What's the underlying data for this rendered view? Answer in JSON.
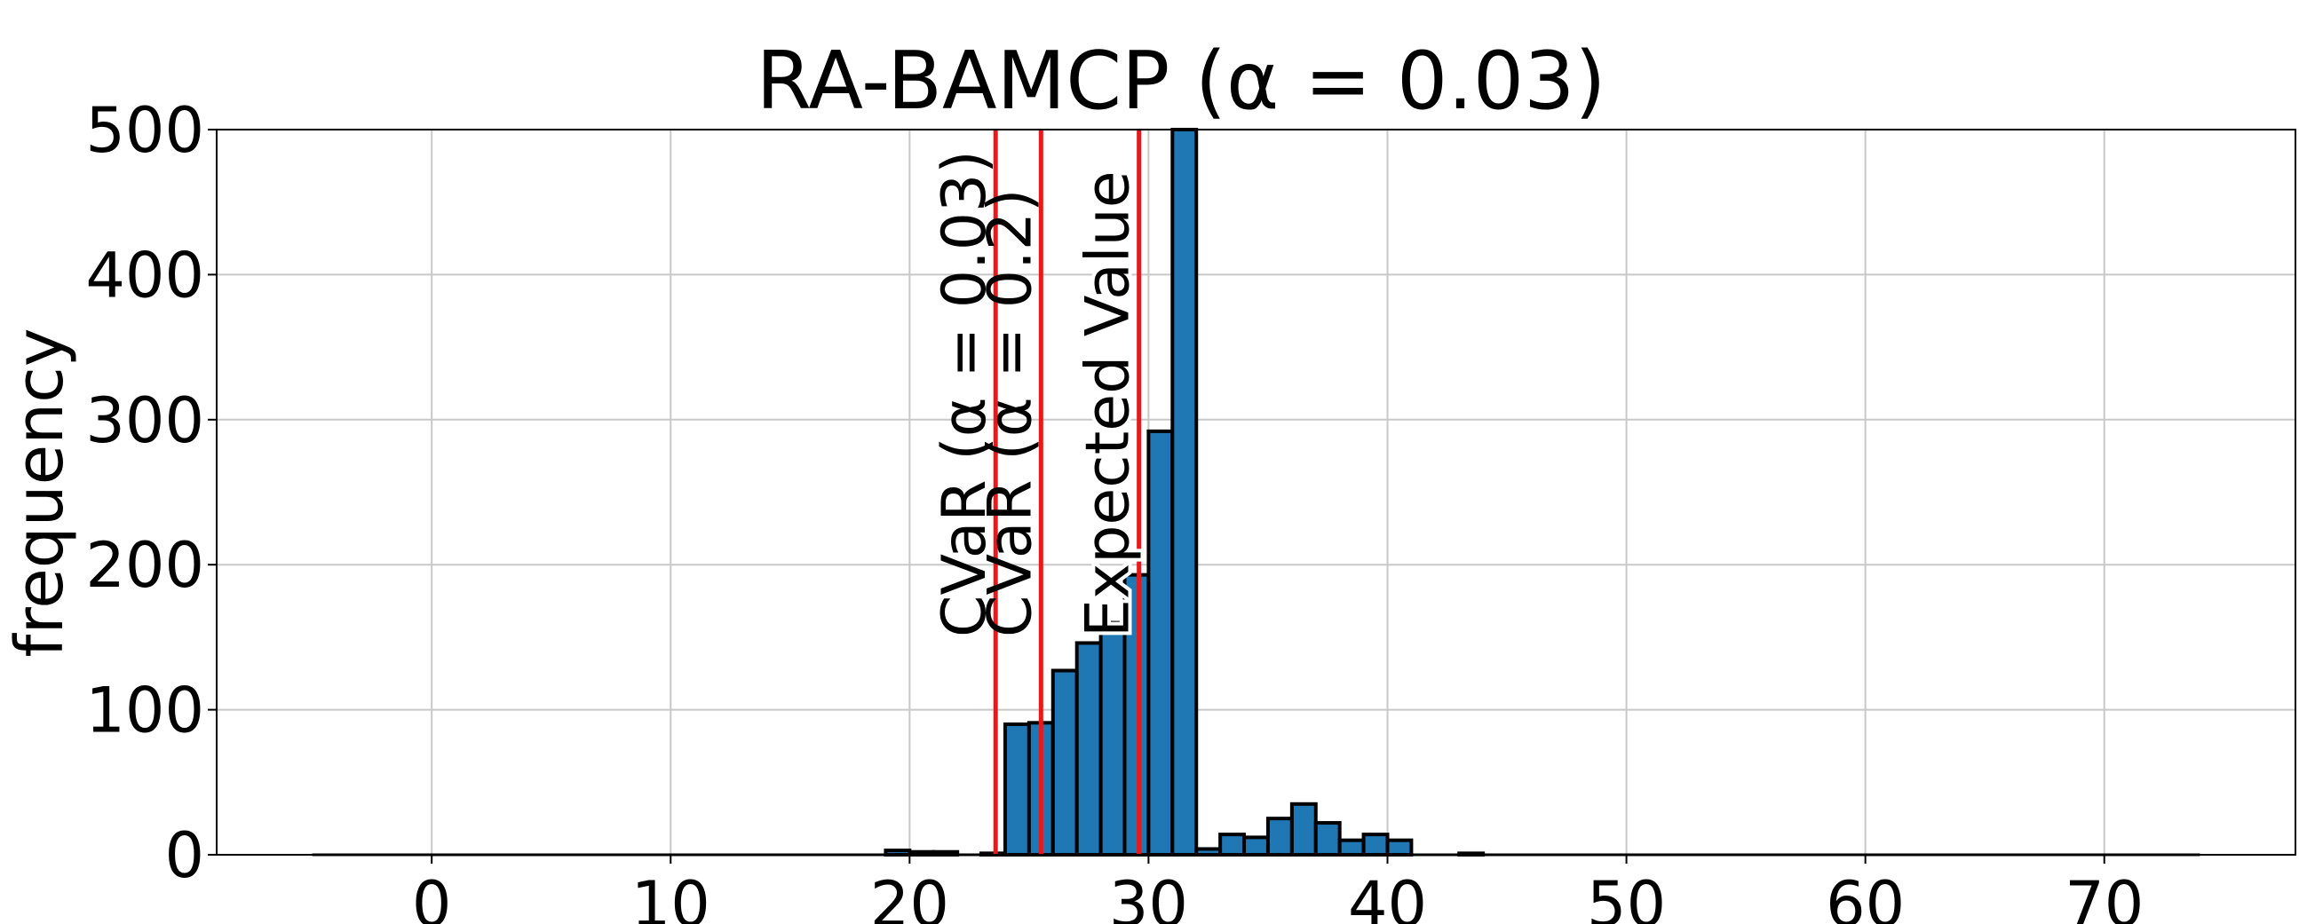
{
  "chart_data": {
    "type": "bar",
    "title": "RA-BAMCP (α = 0.03)",
    "xlabel": "",
    "ylabel": "frequency",
    "xlim": [
      -9,
      78
    ],
    "ylim": [
      0,
      500
    ],
    "xticks": [
      0,
      10,
      20,
      30,
      40,
      50,
      60,
      70
    ],
    "yticks": [
      0,
      100,
      200,
      300,
      400,
      500
    ],
    "grid": true,
    "bar_color": "#1f77b4",
    "bar_edge_color": "#000000",
    "bin_width": 1.0,
    "bins": [
      {
        "x": 19.0,
        "value": 3
      },
      {
        "x": 20.0,
        "value": 2
      },
      {
        "x": 21.0,
        "value": 2
      },
      {
        "x": 23.0,
        "value": 1
      },
      {
        "x": 24.0,
        "value": 90
      },
      {
        "x": 25.0,
        "value": 91
      },
      {
        "x": 26.0,
        "value": 127
      },
      {
        "x": 27.0,
        "value": 146
      },
      {
        "x": 28.0,
        "value": 160
      },
      {
        "x": 29.0,
        "value": 193
      },
      {
        "x": 30.0,
        "value": 292
      },
      {
        "x": 31.0,
        "value": 500
      },
      {
        "x": 32.0,
        "value": 4
      },
      {
        "x": 33.0,
        "value": 14
      },
      {
        "x": 34.0,
        "value": 12
      },
      {
        "x": 35.0,
        "value": 25
      },
      {
        "x": 36.0,
        "value": 35
      },
      {
        "x": 37.0,
        "value": 22
      },
      {
        "x": 38.0,
        "value": 10
      },
      {
        "x": 39.0,
        "value": 14
      },
      {
        "x": 40.0,
        "value": 10
      },
      {
        "x": 43.0,
        "value": 1
      }
    ],
    "baseline_range": [
      -5,
      74
    ],
    "vlines": [
      {
        "x": 23.6,
        "label": "CVaR (α = 0.03)",
        "color": "#e8191c"
      },
      {
        "x": 25.5,
        "label": "CVaR (α = 0.2)",
        "color": "#e8191c"
      },
      {
        "x": 29.6,
        "label": "Expected Value",
        "color": "#e8191c"
      }
    ]
  }
}
